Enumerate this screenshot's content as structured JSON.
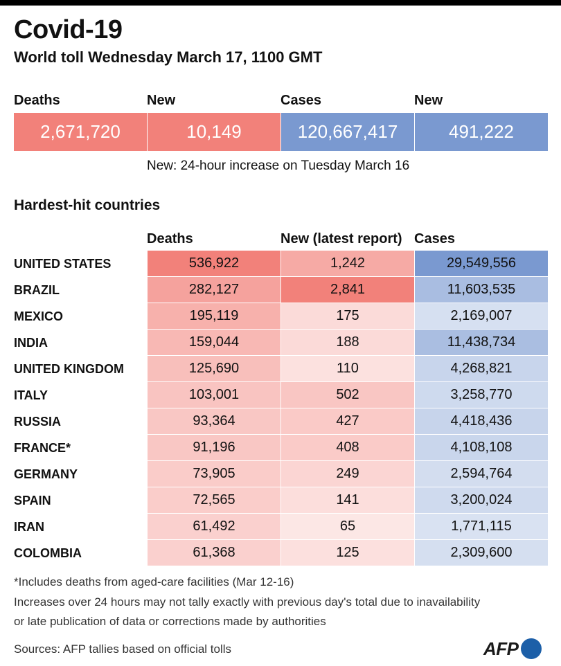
{
  "header": {
    "title": "Covid-19",
    "subtitle": "World toll Wednesday March 17, 1100 GMT"
  },
  "summary": {
    "items": [
      {
        "label": "Deaths",
        "value": "2,671,720",
        "color": "#f2817a"
      },
      {
        "label": "New",
        "value": "10,149",
        "color": "#f2817a"
      },
      {
        "label": "Cases",
        "value": "120,667,417",
        "color": "#7a99d0"
      },
      {
        "label": "New",
        "value": "491,222",
        "color": "#7a99d0"
      }
    ],
    "note": "New: 24-hour increase on Tuesday March 16"
  },
  "table": {
    "title": "Hardest-hit countries",
    "columns": [
      "Deaths",
      "New (latest report)",
      "Cases"
    ],
    "rows": [
      {
        "country": "UNITED STATES",
        "deaths": "536,922",
        "new": "1,242",
        "cases": "29,549,556"
      },
      {
        "country": "BRAZIL",
        "deaths": "282,127",
        "new": "2,841",
        "cases": "11,603,535"
      },
      {
        "country": "MEXICO",
        "deaths": "195,119",
        "new": "175",
        "cases": "2,169,007"
      },
      {
        "country": "INDIA",
        "deaths": "159,044",
        "new": "188",
        "cases": "11,438,734"
      },
      {
        "country": "UNITED KINGDOM",
        "deaths": "125,690",
        "new": "110",
        "cases": "4,268,821"
      },
      {
        "country": "ITALY",
        "deaths": "103,001",
        "new": "502",
        "cases": "3,258,770"
      },
      {
        "country": "RUSSIA",
        "deaths": "93,364",
        "new": "427",
        "cases": "4,418,436"
      },
      {
        "country": "FRANCE*",
        "deaths": "91,196",
        "new": "408",
        "cases": "4,108,108"
      },
      {
        "country": "GERMANY",
        "deaths": "73,905",
        "new": "249",
        "cases": "2,594,764"
      },
      {
        "country": "SPAIN",
        "deaths": "72,565",
        "new": "141",
        "cases": "3,200,024"
      },
      {
        "country": "IRAN",
        "deaths": "61,492",
        "new": "65",
        "cases": "1,771,115"
      },
      {
        "country": "COLOMBIA",
        "deaths": "61,368",
        "new": "125",
        "cases": "2,309,600"
      }
    ],
    "colors": {
      "deaths_scale": "#f2817a",
      "cases_scale": "#7a99d0"
    }
  },
  "footer": {
    "footnote": "*Includes deaths from aged-care facilities (Mar 12-16)",
    "caveat_line1": "Increases over 24 hours may not tally exactly with previous day's total due to inavailability",
    "caveat_line2": "or late publication of data or corrections made by authorities",
    "sources": "Sources: AFP tallies based on official tolls",
    "logo": "AFP"
  }
}
